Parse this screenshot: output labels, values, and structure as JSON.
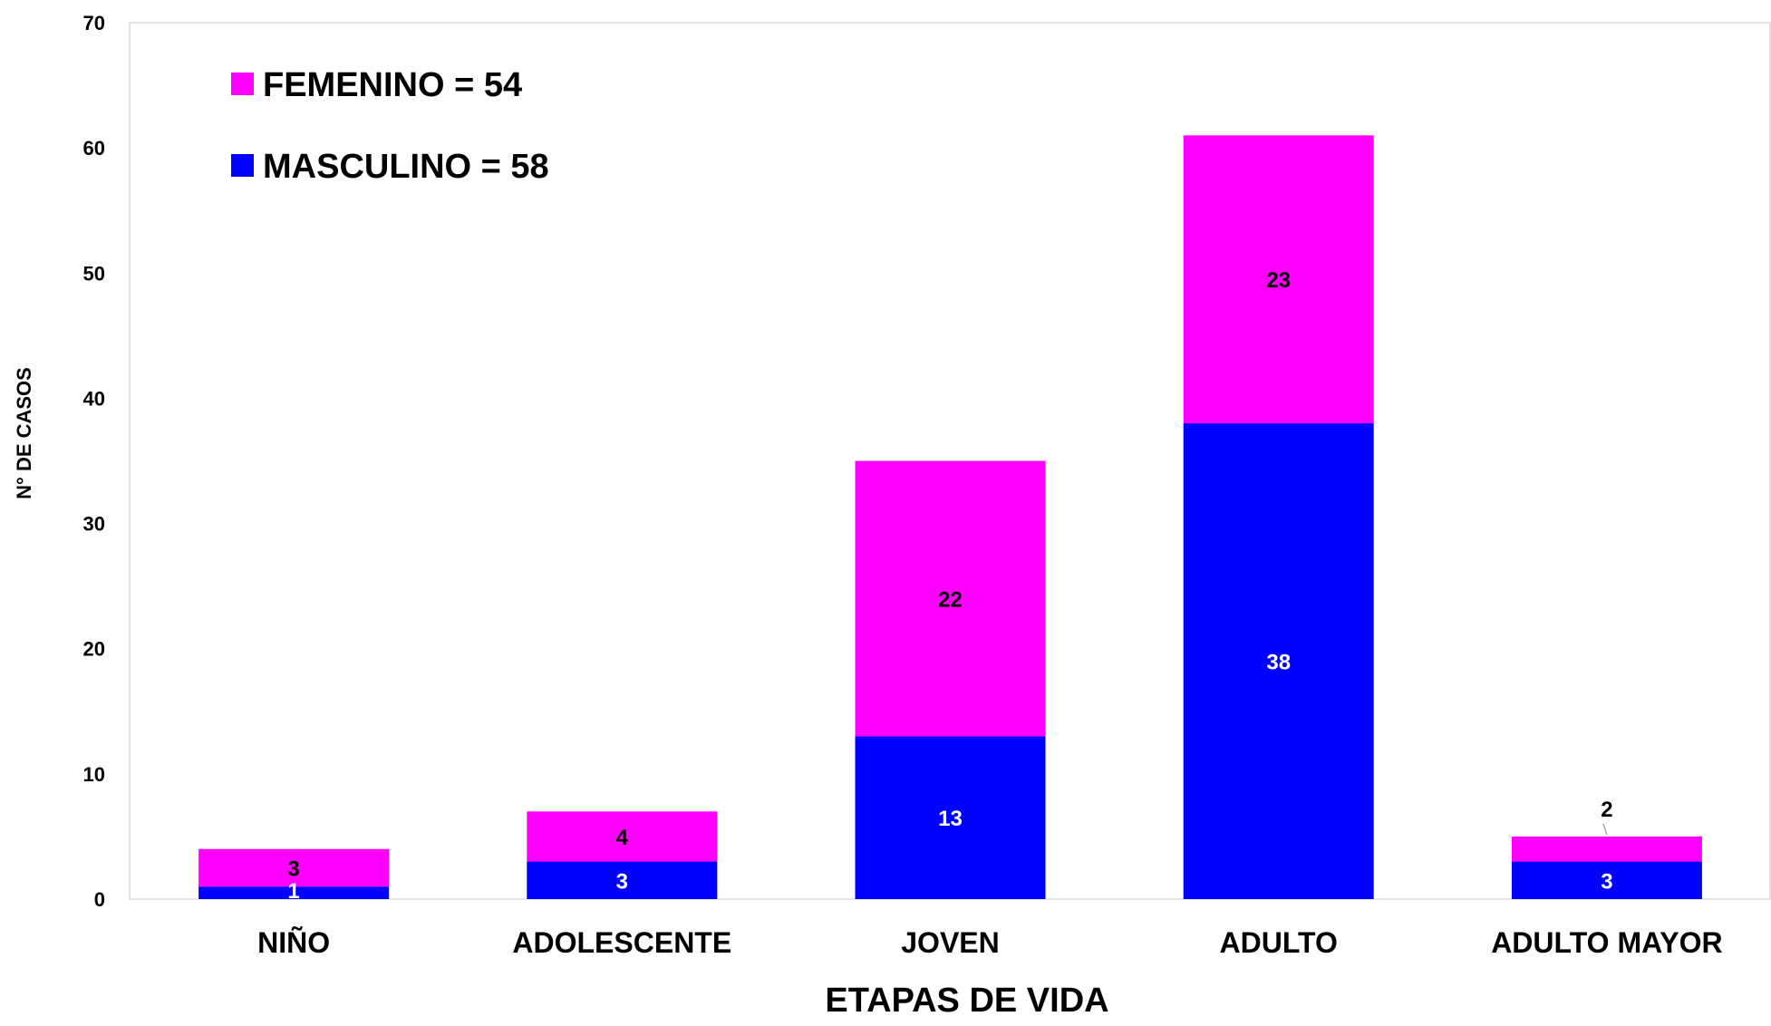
{
  "chart_data": {
    "type": "bar",
    "stacked": true,
    "categories": [
      "NIÑO",
      "ADOLESCENTE",
      "JOVEN",
      "ADULTO",
      "ADULTO MAYOR"
    ],
    "series": [
      {
        "name": "MASCULINO = 58",
        "values": [
          1,
          3,
          13,
          38,
          3
        ],
        "color": "#0000ff",
        "label_color": "#ffffff"
      },
      {
        "name": "FEMENINO = 54",
        "values": [
          3,
          4,
          22,
          23,
          2
        ],
        "color": "#ff00ff",
        "label_color": "#000000"
      }
    ],
    "legend_order": [
      1,
      0
    ],
    "legend_position": "top-left",
    "title": "",
    "xlabel": "ETAPAS DE VIDA",
    "ylabel": "N° DE CASOS",
    "ylim": [
      0,
      70
    ],
    "yticks": [
      0,
      10,
      20,
      30,
      40,
      50,
      60,
      70
    ],
    "grid": false
  }
}
